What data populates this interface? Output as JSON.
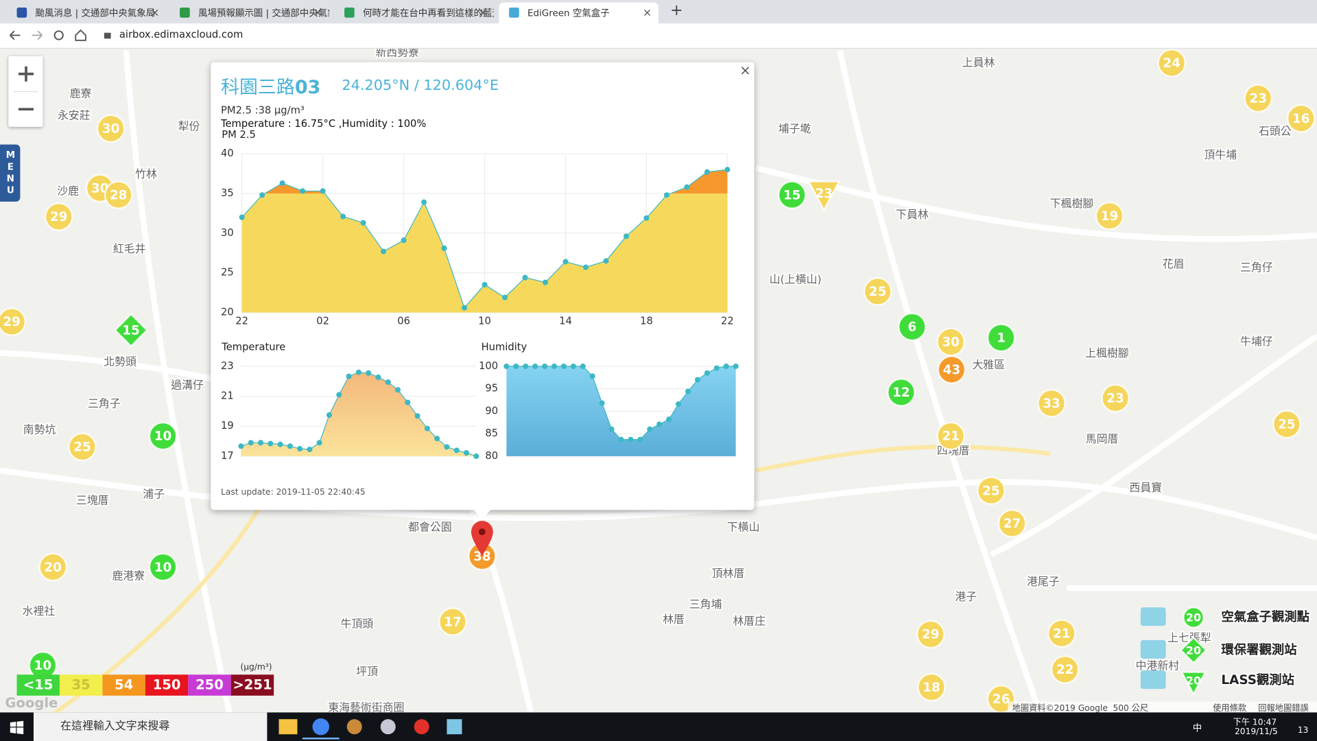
{
  "browser": {
    "tabs": [
      "颱風消息 | 交通部中央氣象局",
      "風場預報顯示圖 | 交通部中央氣象",
      "何時才能在台中再看到這樣的藍天",
      "EdiGreen 空氣盒子"
    ],
    "tab_close": "×",
    "new_tab": "+",
    "url": "airbox.edimaxcloud.com"
  },
  "map": {
    "menu": "MENU",
    "markers": [
      {
        "value": 24,
        "color": "#f5d55a"
      },
      {
        "value": 23,
        "color": "#f5d55a"
      },
      {
        "value": 16,
        "color": "#f5d55a"
      },
      {
        "value": 30,
        "color": "#f5d55a"
      },
      {
        "value": 30,
        "color": "#f5d55a"
      },
      {
        "value": 28,
        "color": "#f5d55a"
      },
      {
        "value": 29,
        "color": "#f5d55a"
      },
      {
        "value": 19,
        "color": "#f5d55a"
      },
      {
        "value": 25,
        "color": "#f5d55a"
      },
      {
        "value": 30,
        "color": "#f5d55a"
      },
      {
        "value": 29,
        "color": "#f5d55a"
      },
      {
        "value": 33,
        "color": "#f5d55a"
      },
      {
        "value": 23,
        "color": "#f5d55a"
      },
      {
        "value": 25,
        "color": "#f5d55a"
      },
      {
        "value": 21,
        "color": "#f5d55a"
      },
      {
        "value": 25,
        "color": "#f5d55a"
      },
      {
        "value": 25,
        "color": "#f5d55a"
      },
      {
        "value": 27,
        "color": "#f5d55a"
      },
      {
        "value": 20,
        "color": "#f5d55a"
      },
      {
        "value": 17,
        "color": "#f5d55a"
      },
      {
        "value": 29,
        "color": "#f5d55a"
      },
      {
        "value": 21,
        "color": "#f5d55a"
      },
      {
        "value": 22,
        "color": "#f5d55a"
      },
      {
        "value": 18,
        "color": "#f5d55a"
      },
      {
        "value": 26,
        "color": "#f5d55a"
      },
      {
        "value": 15,
        "color": "#3fdc3a"
      },
      {
        "value": 6,
        "color": "#3fdc3a"
      },
      {
        "value": 1,
        "color": "#3fdc3a"
      },
      {
        "value": 12,
        "color": "#3fdc3a"
      },
      {
        "value": 10,
        "color": "#3fdc3a"
      },
      {
        "value": 10,
        "color": "#3fdc3a"
      },
      {
        "value": 10,
        "color": "#3fdc3a"
      },
      {
        "value": 15,
        "color": "#3fdc3a",
        "shape": "diamond"
      },
      {
        "value": 23,
        "color": "#f5d55a",
        "shape": "triangle"
      },
      {
        "value": 43,
        "color": "#f39a2b"
      },
      {
        "value": 38,
        "color": "#f39a2b"
      }
    ],
    "places": [
      "新西勢寮",
      "上員林",
      "鹿寮",
      "永安莊",
      "犁份",
      "竹林",
      "沙鹿",
      "紅毛井",
      "北勢頭",
      "過溝仔",
      "三角子",
      "南勢坑",
      "三塊厝",
      "浦子",
      "鹿港寮",
      "水裡社",
      "坪頂",
      "牛頂頭",
      "東海藝術街商圈",
      "都會公園",
      "下員林",
      "埔子墘",
      "頂牛埔",
      "下楓樹腳",
      "花眉",
      "三角仔",
      "牛埔仔",
      "上楓樹腳",
      "大雅區",
      "四塊厝",
      "馬岡厝",
      "西員寶",
      "下橫山",
      "頂林厝",
      "三角埔",
      "林厝庄",
      "林厝",
      "港尾子",
      "港子",
      "上七張犁",
      "中港新村",
      "石頭公",
      "山(上橫山)"
    ],
    "google": "Google",
    "attribution": "地圖資料©2019 Google",
    "scale": "500 公尺",
    "terms": "使用條款",
    "report": "回報地圖錯誤"
  },
  "legend": {
    "unit": "(μg/m³)",
    "levels": [
      {
        "label": "<15",
        "color": "#3fd63d"
      },
      {
        "label": "35",
        "color": "#f2ee4c"
      },
      {
        "label": "54",
        "color": "#f5961f"
      },
      {
        "label": "150",
        "color": "#e8141e"
      },
      {
        "label": "250",
        "color": "#c63bd6"
      },
      {
        "label": ">251",
        "color": "#8a0e20"
      }
    ]
  },
  "station_legend": {
    "items": [
      {
        "value": 20,
        "label": "空氣盒子觀測點",
        "color": "#3fdc3a",
        "shape": "circle"
      },
      {
        "value": 20,
        "label": "環保署觀測站",
        "color": "#3fdc3a",
        "shape": "diamond"
      },
      {
        "value": 20,
        "label": "LASS觀測站",
        "color": "#3fdc3a",
        "shape": "triangle"
      }
    ]
  },
  "popup": {
    "name": "科園三路",
    "name_suffix": "03",
    "coords": "24.205°N / 120.604°E",
    "close": "×",
    "pm_line": "PM2.5 :38 μg/m³",
    "temp_line": "Temperature : 16.75°C ,Humidity : 100%",
    "last_update": "Last update: 2019-11-05 22:40:45",
    "charts": [
      {
        "type": "area",
        "title": "PM 2.5",
        "categories": [
          "22",
          null,
          null,
          null,
          "02",
          null,
          null,
          null,
          "06",
          null,
          null,
          null,
          "10",
          null,
          null,
          null,
          "14",
          null,
          null,
          null,
          "18",
          null,
          null,
          null,
          "22"
        ],
        "values": [
          32.0,
          34.8,
          36.3,
          35.3,
          35.3,
          32.1,
          31.3,
          27.7,
          29.1,
          33.9,
          28.1,
          20.6,
          23.5,
          21.9,
          24.4,
          23.8,
          26.4,
          25.7,
          26.5,
          29.6,
          31.9,
          34.8,
          35.8,
          37.7,
          38.0
        ],
        "ylim": [
          20,
          40
        ],
        "yticks": [
          20,
          25,
          30,
          35,
          40
        ],
        "grid": true,
        "threshold": 35,
        "color": "#f6d95c",
        "color_above": "#f7982e",
        "point_color": "#3db8c4"
      },
      {
        "type": "area",
        "title": "Temperature",
        "values": [
          17.67,
          17.9,
          17.9,
          17.84,
          17.79,
          17.67,
          17.5,
          17.45,
          17.9,
          19.75,
          21.1,
          22.33,
          22.6,
          22.55,
          22.27,
          21.94,
          21.43,
          20.59,
          19.69,
          18.85,
          18.18,
          17.62,
          17.39,
          17.22,
          17.0
        ],
        "ylim": [
          17,
          23
        ],
        "yticks": [
          17,
          19,
          21,
          23
        ],
        "grid": true,
        "color": "#fbe39a",
        "color_top": "#f3b57a",
        "point_color": "#3db8c4"
      },
      {
        "type": "area",
        "title": "Humidity",
        "values": [
          100,
          100,
          100,
          100,
          100,
          100,
          100,
          100,
          100,
          97.8,
          91.8,
          86,
          83.7,
          83.7,
          83.7,
          86,
          87.1,
          88.2,
          91.6,
          94.4,
          97,
          98.5,
          99.6,
          100,
          100
        ],
        "ylim": [
          80,
          100
        ],
        "yticks": [
          80,
          85,
          90,
          95,
          100
        ],
        "grid": true,
        "color": "#5aaed8",
        "color_top": "#86d3f2",
        "point_color": "#3db8c4"
      }
    ]
  },
  "taskbar": {
    "search": "在這裡輸入文字來搜尋",
    "ime": "中",
    "time": "下午 10:47",
    "date": "2019/11/5",
    "notifications": "13"
  }
}
